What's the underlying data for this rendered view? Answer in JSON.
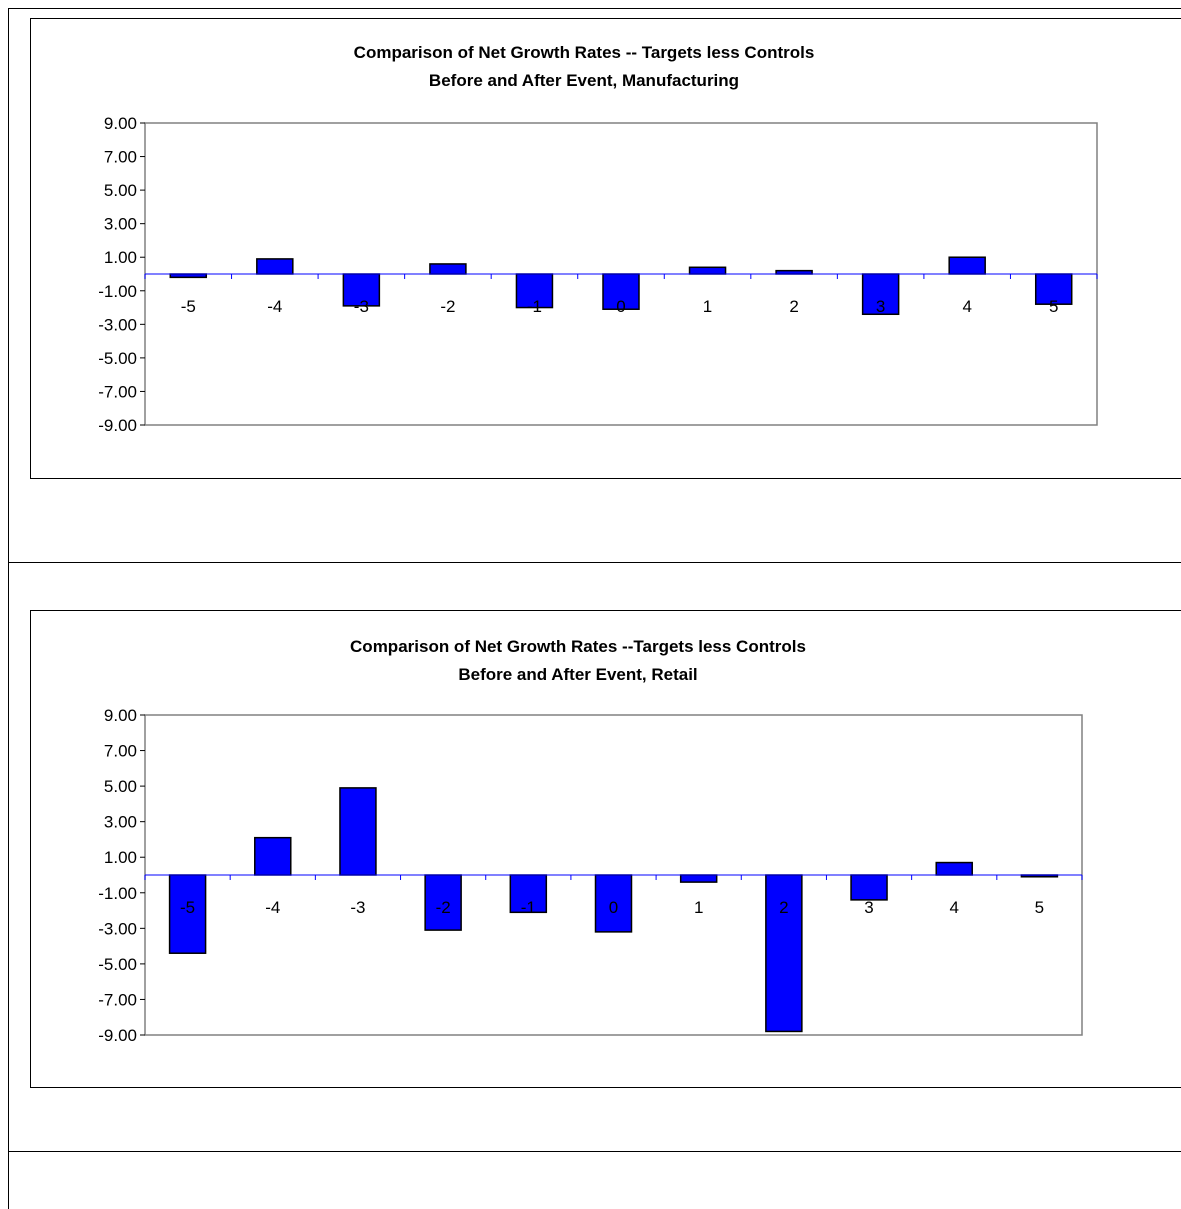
{
  "chart_data": [
    {
      "type": "bar",
      "title": "Comparison of Net Growth Rates -- Targets less Controls",
      "subtitle": "Before and After Event, Manufacturing",
      "xlabel": "",
      "ylabel": "",
      "ylim": [
        -9,
        9
      ],
      "yticks": [
        "9.00",
        "7.00",
        "5.00",
        "3.00",
        "1.00",
        "-1.00",
        "-3.00",
        "-5.00",
        "-7.00",
        "-9.00"
      ],
      "categories": [
        "-5",
        "-4",
        "-3",
        "-2",
        "-1",
        "0",
        "1",
        "2",
        "3",
        "4",
        "5"
      ],
      "values": [
        -0.2,
        0.9,
        -1.9,
        0.6,
        -2.0,
        -2.1,
        0.4,
        0.2,
        -2.4,
        1.0,
        -1.8
      ],
      "grid": false,
      "bar_color": "#0000ff",
      "axis_line_color": "#0000ff"
    },
    {
      "type": "bar",
      "title": "Comparison of Net Growth Rates --Targets less Controls",
      "subtitle": "Before and After Event, Retail",
      "xlabel": "",
      "ylabel": "",
      "ylim": [
        -9,
        9
      ],
      "yticks": [
        "9.00",
        "7.00",
        "5.00",
        "3.00",
        "1.00",
        "-1.00",
        "-3.00",
        "-5.00",
        "-7.00",
        "-9.00"
      ],
      "categories": [
        "-5",
        "-4",
        "-3",
        "-2",
        "-1",
        "0",
        "1",
        "2",
        "3",
        "4",
        "5"
      ],
      "values": [
        -4.4,
        2.1,
        4.9,
        -3.1,
        -2.1,
        -3.2,
        -0.4,
        -8.8,
        -1.4,
        0.7,
        -0.1
      ],
      "grid": false,
      "bar_color": "#0000ff",
      "axis_line_color": "#0000ff"
    }
  ]
}
